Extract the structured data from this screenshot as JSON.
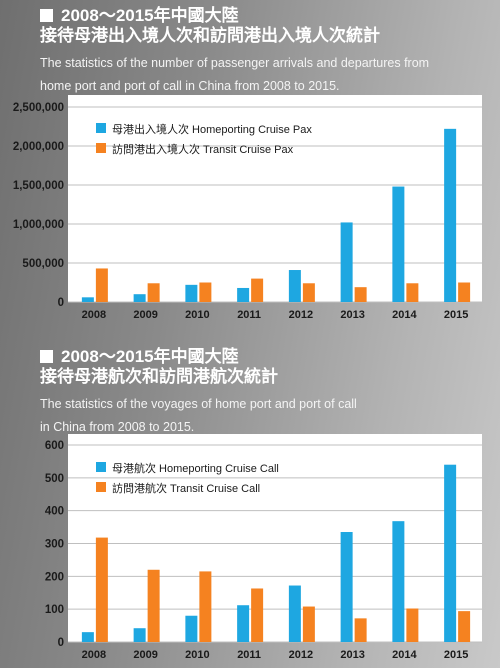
{
  "charts": [
    {
      "title_line1": "2008～2015年中國大陸",
      "title_line2": "接待母港出入境人次和訪問港出入境人次統計",
      "desc_line1": "The statistics of the number of passenger arrivals and departures from",
      "desc_line2": "home port and port of call in China from 2008 to 2015."
    },
    {
      "title_line1": "2008～2015年中國大陸",
      "title_line2": "接待母港航次和訪問港航次統計",
      "desc_line1": "The statistics of the voyages of home port and port of call",
      "desc_line2": "in China from 2008 to 2015."
    }
  ],
  "colors": {
    "homeport": "#1ea7e1",
    "transit": "#f58220",
    "panel": "#ffffff",
    "grid": "#bfbfbf",
    "text": "#1a1a1a"
  },
  "chart_data": [
    {
      "type": "bar",
      "title": "2008～2015年中國大陸 接待母港出入境人次和訪問港出入境人次統計",
      "categories": [
        "2008",
        "2009",
        "2010",
        "2011",
        "2012",
        "2013",
        "2014",
        "2015"
      ],
      "series": [
        {
          "name": "母港出入境人次 Homeporting Cruise Pax",
          "values": [
            60000,
            100000,
            220000,
            180000,
            410000,
            1020000,
            1480000,
            2220000
          ]
        },
        {
          "name": "訪問港出入境人次 Transit Cruise Pax",
          "values": [
            430000,
            240000,
            250000,
            300000,
            240000,
            190000,
            240000,
            250000
          ]
        }
      ],
      "ylim": [
        0,
        2500000
      ],
      "yticks": [
        0,
        500000,
        1000000,
        1500000,
        2000000,
        2500000
      ],
      "ytick_labels": [
        "0",
        "500,000",
        "1,000,000",
        "1,500,000",
        "2,000,000",
        "2,500,000"
      ],
      "legend": "top-left",
      "grid": true
    },
    {
      "type": "bar",
      "title": "2008～2015年中國大陸 接待母港航次和訪問港航次統計",
      "categories": [
        "2008",
        "2009",
        "2010",
        "2011",
        "2012",
        "2013",
        "2014",
        "2015"
      ],
      "series": [
        {
          "name": "母港航次 Homeporting Cruise Call",
          "values": [
            30,
            42,
            80,
            112,
            172,
            335,
            368,
            540
          ]
        },
        {
          "name": "訪問港航次 Transit Cruise Call",
          "values": [
            318,
            220,
            215,
            163,
            108,
            72,
            102,
            94
          ]
        }
      ],
      "ylim": [
        0,
        600
      ],
      "yticks": [
        0,
        100,
        200,
        300,
        400,
        500,
        600
      ],
      "ytick_labels": [
        "0",
        "100",
        "200",
        "300",
        "400",
        "500",
        "600"
      ],
      "legend": "top-left",
      "grid": true
    }
  ]
}
